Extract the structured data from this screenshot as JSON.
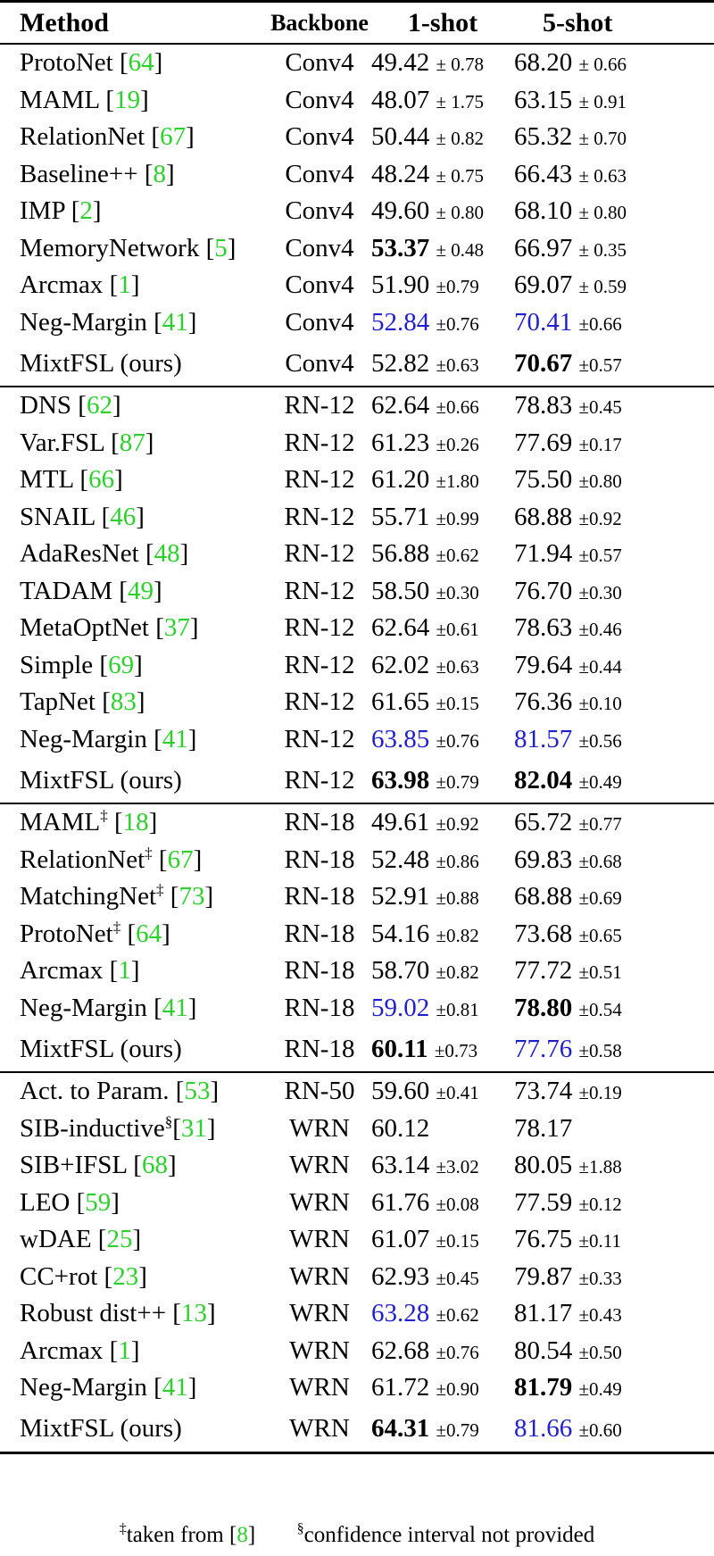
{
  "headers": {
    "method": "Method",
    "backbone": "Backbone",
    "shot1": "1-shot",
    "shot5": "5-shot"
  },
  "groups": [
    {
      "rows": [
        {
          "method": "ProtoNet",
          "sup": "",
          "ref": "64",
          "backbone": "Conv4",
          "s1": "49.42",
          "s1ci": "± 0.78",
          "s1style": "",
          "s5": "68.20",
          "s5ci": "± 0.66",
          "s5style": ""
        },
        {
          "method": "MAML",
          "sup": "",
          "ref": "19",
          "backbone": "Conv4",
          "s1": "48.07",
          "s1ci": "± 1.75",
          "s1style": "",
          "s5": "63.15",
          "s5ci": "± 0.91",
          "s5style": ""
        },
        {
          "method": "RelationNet",
          "sup": "",
          "ref": "67",
          "backbone": "Conv4",
          "s1": "50.44",
          "s1ci": "± 0.82",
          "s1style": "",
          "s5": "65.32",
          "s5ci": "± 0.70",
          "s5style": ""
        },
        {
          "method": "Baseline++",
          "sup": "",
          "ref": "8",
          "backbone": "Conv4",
          "s1": "48.24",
          "s1ci": "± 0.75",
          "s1style": "",
          "s5": "66.43",
          "s5ci": "± 0.63",
          "s5style": ""
        },
        {
          "method": "IMP",
          "sup": "",
          "ref": "2",
          "backbone": "Conv4",
          "s1": "49.60",
          "s1ci": "± 0.80",
          "s1style": "",
          "s5": "68.10",
          "s5ci": "± 0.80",
          "s5style": ""
        },
        {
          "method": "MemoryNetwork",
          "sup": "",
          "ref": "5",
          "backbone": "Conv4",
          "s1": "53.37",
          "s1ci": "± 0.48",
          "s1style": "best",
          "s5": "66.97",
          "s5ci": "± 0.35",
          "s5style": ""
        },
        {
          "method": "Arcmax",
          "sup": "",
          "ref": "1",
          "backbone": "Conv4",
          "s1": "51.90",
          "s1ci": "±0.79",
          "s1style": "",
          "s5": "69.07",
          "s5ci": "± 0.59",
          "s5style": ""
        },
        {
          "method": "Neg-Margin",
          "sup": "",
          "ref": "41",
          "backbone": "Conv4",
          "s1": "52.84",
          "s1ci": "±0.76",
          "s1style": "second",
          "s5": "70.41",
          "s5ci": "±0.66",
          "s5style": "second"
        },
        {
          "method": "MixtFSL (ours)",
          "sup": "",
          "ref": "",
          "backbone": "Conv4",
          "s1": "52.82",
          "s1ci": "±0.63",
          "s1style": "",
          "s5": "70.67",
          "s5ci": "±0.57",
          "s5style": "best"
        }
      ]
    },
    {
      "rows": [
        {
          "method": "DNS",
          "sup": "",
          "ref": "62",
          "backbone": "RN-12",
          "s1": "62.64",
          "s1ci": "±0.66",
          "s1style": "",
          "s5": "78.83",
          "s5ci": "±0.45",
          "s5style": ""
        },
        {
          "method": "Var.FSL",
          "sup": "",
          "ref": "87",
          "backbone": "RN-12",
          "s1": "61.23",
          "s1ci": "±0.26",
          "s1style": "",
          "s5": "77.69",
          "s5ci": "±0.17",
          "s5style": ""
        },
        {
          "method": "MTL",
          "sup": "",
          "ref": "66",
          "backbone": "RN-12",
          "s1": "61.20",
          "s1ci": "±1.80",
          "s1style": "",
          "s5": "75.50",
          "s5ci": "±0.80",
          "s5style": ""
        },
        {
          "method": "SNAIL",
          "sup": "",
          "ref": "46",
          "backbone": "RN-12",
          "s1": "55.71",
          "s1ci": "±0.99",
          "s1style": "",
          "s5": "68.88",
          "s5ci": "±0.92",
          "s5style": ""
        },
        {
          "method": "AdaResNet",
          "sup": "",
          "ref": "48",
          "backbone": "RN-12",
          "s1": "56.88",
          "s1ci": "±0.62",
          "s1style": "",
          "s5": "71.94",
          "s5ci": "±0.57",
          "s5style": ""
        },
        {
          "method": "TADAM",
          "sup": "",
          "ref": "49",
          "backbone": "RN-12",
          "s1": "58.50",
          "s1ci": "±0.30",
          "s1style": "",
          "s5": "76.70",
          "s5ci": "±0.30",
          "s5style": ""
        },
        {
          "method": "MetaOptNet",
          "sup": "",
          "ref": "37",
          "backbone": "RN-12",
          "s1": "62.64",
          "s1ci": "±0.61",
          "s1style": "",
          "s5": "78.63",
          "s5ci": "±0.46",
          "s5style": ""
        },
        {
          "method": "Simple",
          "sup": "",
          "ref": "69",
          "backbone": "RN-12",
          "s1": "62.02",
          "s1ci": "±0.63",
          "s1style": "",
          "s5": "79.64",
          "s5ci": "±0.44",
          "s5style": ""
        },
        {
          "method": "TapNet",
          "sup": "",
          "ref": "83",
          "backbone": "RN-12",
          "s1": "61.65",
          "s1ci": "±0.15",
          "s1style": "",
          "s5": "76.36",
          "s5ci": "±0.10",
          "s5style": ""
        },
        {
          "method": "Neg-Margin",
          "sup": "",
          "ref": "41",
          "backbone": "RN-12",
          "s1": "63.85",
          "s1ci": "±0.76",
          "s1style": "second",
          "s5": "81.57",
          "s5ci": "±0.56",
          "s5style": "second"
        },
        {
          "method": "MixtFSL (ours)",
          "sup": "",
          "ref": "",
          "backbone": "RN-12",
          "s1": "63.98",
          "s1ci": "±0.79",
          "s1style": "best",
          "s5": "82.04",
          "s5ci": "±0.49",
          "s5style": "best"
        }
      ]
    },
    {
      "rows": [
        {
          "method": "MAML",
          "sup": "‡",
          "ref": "18",
          "backbone": "RN-18",
          "s1": "49.61",
          "s1ci": "±0.92",
          "s1style": "",
          "s5": "65.72",
          "s5ci": "±0.77",
          "s5style": ""
        },
        {
          "method": "RelationNet",
          "sup": "‡",
          "ref": "67",
          "backbone": "RN-18",
          "s1": "52.48",
          "s1ci": "±0.86",
          "s1style": "",
          "s5": "69.83",
          "s5ci": "±0.68",
          "s5style": ""
        },
        {
          "method": "MatchingNet",
          "sup": "‡",
          "ref": "73",
          "backbone": "RN-18",
          "s1": "52.91",
          "s1ci": "±0.88",
          "s1style": "",
          "s5": "68.88",
          "s5ci": "±0.69",
          "s5style": ""
        },
        {
          "method": "ProtoNet",
          "sup": "‡",
          "ref": "64",
          "backbone": "RN-18",
          "s1": "54.16",
          "s1ci": "±0.82",
          "s1style": "",
          "s5": "73.68",
          "s5ci": "±0.65",
          "s5style": ""
        },
        {
          "method": "Arcmax",
          "sup": "",
          "ref": "1",
          "backbone": "RN-18",
          "s1": "58.70",
          "s1ci": "±0.82",
          "s1style": "",
          "s5": "77.72",
          "s5ci": "±0.51",
          "s5style": ""
        },
        {
          "method": "Neg-Margin",
          "sup": "",
          "ref": "41",
          "backbone": "RN-18",
          "s1": "59.02",
          "s1ci": "±0.81",
          "s1style": "second",
          "s5": "78.80",
          "s5ci": "±0.54",
          "s5style": "best"
        },
        {
          "method": "MixtFSL (ours)",
          "sup": "",
          "ref": "",
          "backbone": "RN-18",
          "s1": "60.11",
          "s1ci": "±0.73",
          "s1style": "best",
          "s5": "77.76",
          "s5ci": "±0.58",
          "s5style": "second"
        }
      ]
    },
    {
      "rows": [
        {
          "method": "Act. to Param.",
          "sup": "",
          "ref": "53",
          "backbone": "RN-50",
          "s1": "59.60",
          "s1ci": "±0.41",
          "s1style": "",
          "s5": "73.74",
          "s5ci": "±0.19",
          "s5style": ""
        },
        {
          "method": "SIB-inductive",
          "sup": "§",
          "ref": "31",
          "backbone": "WRN",
          "s1": "60.12",
          "s1ci": "",
          "s1style": "",
          "s5": "78.17",
          "s5ci": "",
          "s5style": ""
        },
        {
          "method": "SIB+IFSL",
          "sup": "",
          "ref": "68",
          "backbone": "WRN",
          "s1": "63.14",
          "s1ci": "±3.02",
          "s1style": "",
          "s5": "80.05",
          "s5ci": "±1.88",
          "s5style": ""
        },
        {
          "method": "LEO",
          "sup": "",
          "ref": "59",
          "backbone": "WRN",
          "s1": "61.76",
          "s1ci": "±0.08",
          "s1style": "",
          "s5": "77.59",
          "s5ci": "±0.12",
          "s5style": ""
        },
        {
          "method": "wDAE",
          "sup": "",
          "ref": "25",
          "backbone": "WRN",
          "s1": "61.07",
          "s1ci": "±0.15",
          "s1style": "",
          "s5": "76.75",
          "s5ci": "±0.11",
          "s5style": ""
        },
        {
          "method": "CC+rot",
          "sup": "",
          "ref": "23",
          "backbone": "WRN",
          "s1": "62.93",
          "s1ci": "±0.45",
          "s1style": "",
          "s5": "79.87",
          "s5ci": "±0.33",
          "s5style": ""
        },
        {
          "method": "Robust dist++",
          "sup": "",
          "ref": "13",
          "backbone": "WRN",
          "s1": "63.28",
          "s1ci": "±0.62",
          "s1style": "second",
          "s5": "81.17",
          "s5ci": "±0.43",
          "s5style": ""
        },
        {
          "method": "Arcmax",
          "sup": "",
          "ref": "1",
          "backbone": "WRN",
          "s1": "62.68",
          "s1ci": "±0.76",
          "s1style": "",
          "s5": "80.54",
          "s5ci": "±0.50",
          "s5style": ""
        },
        {
          "method": "Neg-Margin",
          "sup": "",
          "ref": "41",
          "backbone": "WRN",
          "s1": "61.72",
          "s1ci": "±0.90",
          "s1style": "",
          "s5": "81.79",
          "s5ci": "±0.49",
          "s5style": "best"
        },
        {
          "method": "MixtFSL (ours)",
          "sup": "",
          "ref": "",
          "backbone": "WRN",
          "s1": "64.31",
          "s1ci": "±0.79",
          "s1style": "best",
          "s5": "81.66",
          "s5ci": "±0.60",
          "s5style": "second"
        }
      ]
    }
  ],
  "footnote": {
    "dagger_symbol": "‡",
    "dagger_text": "taken from ",
    "dagger_ref": "8",
    "section_symbol": "§",
    "section_text": "confidence interval not provided"
  },
  "colors": {
    "best": "bold",
    "second_best": "#1f1fcc",
    "citation": "#2bd12b"
  }
}
